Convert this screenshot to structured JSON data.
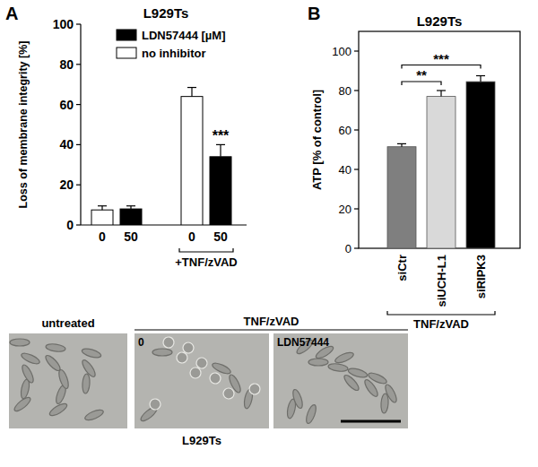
{
  "chart_data": [
    {
      "type": "bar",
      "panel_label": "A",
      "title": "L929Ts",
      "y_label": "Loss of membrane integrity [%]",
      "categories": [
        "0",
        "50",
        "0",
        "50"
      ],
      "series": [
        {
          "name": "LDN57444 [µM]",
          "color": "#000000",
          "values": [
            null,
            8,
            null,
            34
          ],
          "errors": [
            null,
            1.5,
            null,
            6
          ],
          "significance": [
            null,
            null,
            null,
            "***"
          ]
        },
        {
          "name": "no inhibitor",
          "color": "#ffffff",
          "values": [
            7.5,
            null,
            64,
            null
          ],
          "errors": [
            2,
            null,
            4.5,
            null
          ]
        }
      ],
      "groups": [
        {
          "label": "+TNF/zVAD",
          "from": 2,
          "to": 3
        }
      ],
      "ylim": [
        0,
        100
      ],
      "yticks": [
        0,
        20,
        40,
        60,
        80,
        100
      ],
      "legend": "upper left",
      "grid": false
    },
    {
      "type": "bar",
      "panel_label": "B",
      "title": "L929Ts",
      "y_label": "ATP [% of control]",
      "categories": [
        "siCtr",
        "siUCH-L1",
        "siRIPK3"
      ],
      "values": [
        51.5,
        77,
        84.5
      ],
      "errors": [
        1.5,
        3,
        3
      ],
      "colors": [
        "#7f7f7f",
        "#d9d9d9",
        "#000000"
      ],
      "comparisons": [
        {
          "from": 0,
          "to": 1,
          "label": "**"
        },
        {
          "from": 0,
          "to": 2,
          "label": "***"
        }
      ],
      "groups": [
        {
          "label": "TNF/zVAD",
          "from": 0,
          "to": 2
        }
      ],
      "ylim": [
        0,
        110
      ],
      "yticks": [
        0,
        20,
        40,
        60,
        80,
        100
      ],
      "grid": false
    }
  ],
  "micrographs": {
    "panels": [
      "untreated",
      "0",
      "LDN57444"
    ],
    "header": {
      "label": "TNF/zVAD",
      "from": 1,
      "to": 2
    },
    "caption": "L929Ts"
  }
}
